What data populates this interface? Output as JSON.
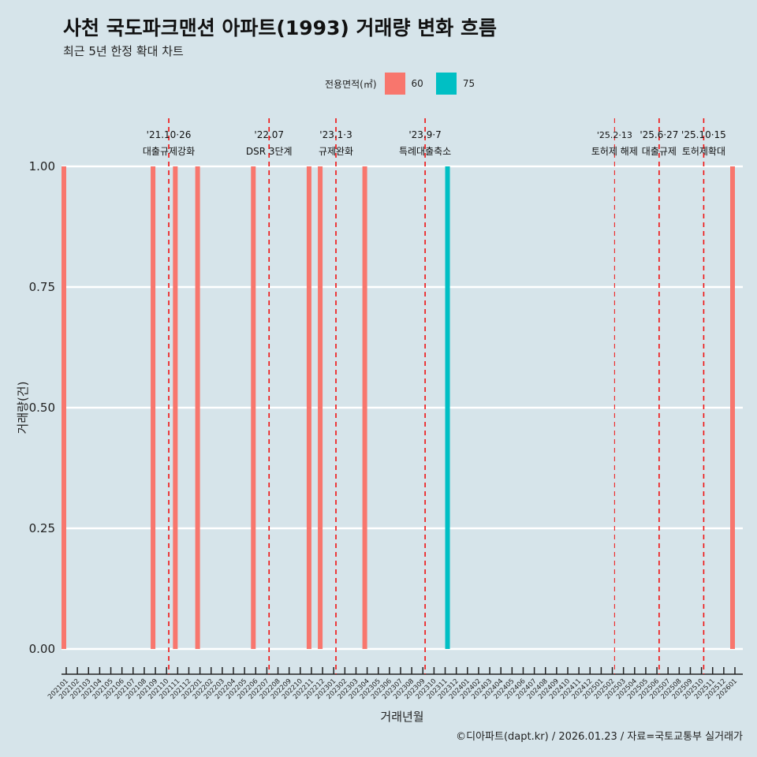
{
  "title": "사천 국도파크맨션 아파트(1993) 거래량 변화 흐름",
  "subtitle": "최근 5년 한정 확대 차트",
  "caption": "©디아파트(dapt.kr) / 2026.01.23 / 자료=국토교통부 실거래가",
  "chart_data": {
    "type": "bar",
    "xlabel": "거래년월",
    "ylabel": "거래량(건)",
    "ylim": [
      0,
      1
    ],
    "yticks": [
      "0.00",
      "0.25",
      "0.50",
      "0.75",
      "1.00"
    ],
    "legend": {
      "title": "전용면적(㎡)",
      "placement": "top",
      "entries": [
        {
          "name": "60",
          "color": "#F8766D"
        },
        {
          "name": "75",
          "color": "#00BFC4"
        }
      ]
    },
    "categories": [
      "202101",
      "202102",
      "202103",
      "202104",
      "202105",
      "202106",
      "202107",
      "202108",
      "202109",
      "202110",
      "202111",
      "202112",
      "202201",
      "202202",
      "202203",
      "202204",
      "202205",
      "202206",
      "202207",
      "202208",
      "202209",
      "202210",
      "202211",
      "202212",
      "202301",
      "202302",
      "202303",
      "202304",
      "202305",
      "202306",
      "202307",
      "202308",
      "202309",
      "202310",
      "202311",
      "202312",
      "202401",
      "202402",
      "202403",
      "202404",
      "202405",
      "202406",
      "202407",
      "202408",
      "202409",
      "202410",
      "202411",
      "202412",
      "202501",
      "202502",
      "202503",
      "202504",
      "202505",
      "202506",
      "202507",
      "202508",
      "202509",
      "202510",
      "202511",
      "202512",
      "202601"
    ],
    "series": [
      {
        "name": "60",
        "color": "#F8766D",
        "points": [
          {
            "x": "202101",
            "y": 1
          },
          {
            "x": "202109",
            "y": 1
          },
          {
            "x": "202111",
            "y": 1
          },
          {
            "x": "202201",
            "y": 1
          },
          {
            "x": "202206",
            "y": 1
          },
          {
            "x": "202211",
            "y": 1
          },
          {
            "x": "202212",
            "y": 1
          },
          {
            "x": "202304",
            "y": 1
          },
          {
            "x": "202601",
            "y": 1
          }
        ]
      },
      {
        "name": "75",
        "color": "#00BFC4",
        "points": [
          {
            "x": "202311",
            "y": 1
          }
        ]
      }
    ],
    "annotations": [
      {
        "date": "'21.10·26",
        "label": "대출규제강화",
        "x": "202110",
        "thin": false
      },
      {
        "date": "'22.07",
        "label": "DSR 3단계",
        "x": "202207",
        "thin": false
      },
      {
        "date": "'23.1·3",
        "label": "규제완화",
        "x": "202301",
        "thin": false
      },
      {
        "date": "'23.9·7",
        "label": "특례대출축소",
        "x": "202309",
        "thin": false
      },
      {
        "date": "'25.2·13",
        "label": "토허제 해제",
        "x": "202502",
        "thin": true
      },
      {
        "date": "'25.6·27",
        "label": "대출규제",
        "x": "202506",
        "thin": false
      },
      {
        "date": "'25.10·15",
        "label": "토허제확대",
        "x": "202510",
        "thin": false
      }
    ]
  }
}
